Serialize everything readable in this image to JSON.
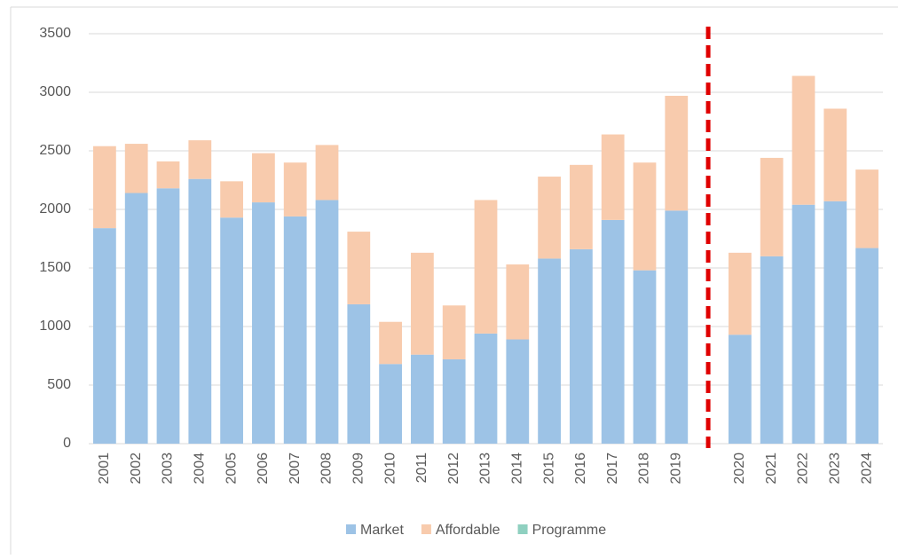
{
  "chart_data": {
    "type": "bar",
    "stacked": true,
    "categories": [
      "2001",
      "2002",
      "2003",
      "2004",
      "2005",
      "2006",
      "2007",
      "2008",
      "2009",
      "2010",
      "2011",
      "2012",
      "2013",
      "2014",
      "2015",
      "2016",
      "2017",
      "2018",
      "2019",
      null,
      "2020",
      "2021",
      "2022",
      "2023",
      "2024"
    ],
    "series": [
      {
        "name": "Market",
        "color": "#9dc3e6",
        "values": [
          1840,
          2140,
          2180,
          2260,
          1930,
          2060,
          1940,
          2080,
          1190,
          680,
          760,
          720,
          940,
          890,
          1580,
          1660,
          1910,
          1480,
          1990,
          null,
          930,
          1600,
          2040,
          2070,
          1670
        ]
      },
      {
        "name": "Affordable",
        "color": "#f8cbad",
        "values": [
          700,
          420,
          230,
          330,
          310,
          420,
          460,
          470,
          620,
          360,
          870,
          460,
          1140,
          640,
          700,
          720,
          730,
          920,
          980,
          null,
          700,
          840,
          1100,
          790,
          670
        ]
      },
      {
        "name": "Programme",
        "color": "#8fd0c0",
        "values": [
          0,
          0,
          0,
          0,
          0,
          0,
          0,
          0,
          0,
          0,
          0,
          0,
          0,
          0,
          0,
          0,
          0,
          0,
          0,
          null,
          0,
          0,
          0,
          0,
          0
        ]
      }
    ],
    "ylim": [
      0,
      3500
    ],
    "yticks": [
      0,
      500,
      1000,
      1500,
      2000,
      2500,
      3000,
      3500
    ],
    "grid": true,
    "divider_color": "#e00000",
    "legend": "bottom"
  }
}
